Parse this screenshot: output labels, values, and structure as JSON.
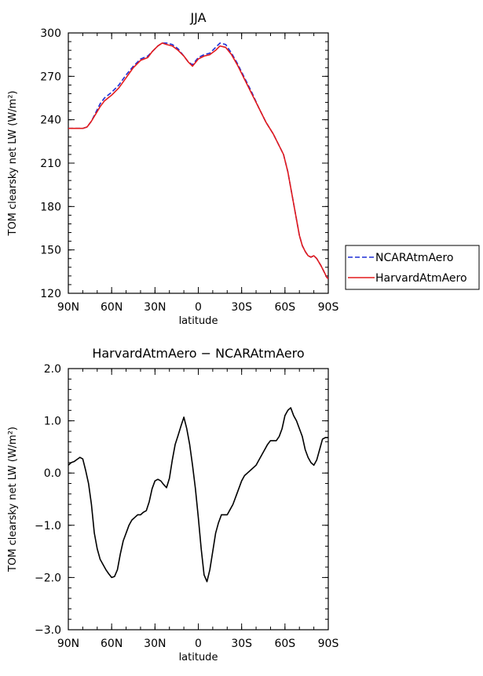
{
  "chart_data": [
    {
      "type": "line",
      "title": "JJA",
      "xlabel": "latitude",
      "ylabel": "TOM clearsky net LW (W/m²)",
      "xlim": [
        90,
        -90
      ],
      "ylim": [
        120,
        300
      ],
      "xticks": [
        90,
        60,
        30,
        0,
        -30,
        -60,
        -90
      ],
      "xtick_labels": [
        "90N",
        "60N",
        "30N",
        "0",
        "30S",
        "60S",
        "90S"
      ],
      "yticks": [
        120,
        150,
        180,
        210,
        240,
        270,
        300
      ],
      "ytick_labels": [
        "120",
        "150",
        "180",
        "210",
        "240",
        "270",
        "300"
      ],
      "legend_position": "outside-right",
      "series": [
        {
          "name": "NCARAtmAero",
          "color": "#1f2fd6",
          "dash": "dashed",
          "x": [
            90,
            85,
            80,
            77,
            74,
            71,
            68,
            65,
            60,
            55,
            50,
            45,
            40,
            35,
            32,
            28,
            25,
            22,
            18,
            14,
            10,
            7,
            4,
            0,
            -4,
            -8,
            -12,
            -15,
            -19,
            -23,
            -27,
            -32,
            -37,
            -42,
            -47,
            -52,
            -55,
            -59,
            -62,
            -64,
            -66,
            -68,
            -70,
            -72,
            -74,
            -76,
            -78,
            -80,
            -82,
            -85,
            -87,
            -89,
            -90
          ],
          "y": [
            234,
            234,
            234,
            235,
            239,
            245,
            251,
            255,
            259,
            264,
            271,
            277,
            282,
            284,
            287,
            291,
            293,
            293,
            292,
            289,
            284,
            280,
            278,
            283,
            285,
            286,
            290,
            293,
            292,
            286,
            279,
            269,
            259,
            248,
            238,
            230,
            224,
            216,
            204,
            193,
            182,
            171,
            160,
            153,
            149,
            146,
            145,
            146,
            144,
            139,
            135,
            131,
            130
          ]
        },
        {
          "name": "HarvardAtmAero",
          "color": "#e31a1c",
          "dash": "solid",
          "x": [
            90,
            85,
            80,
            77,
            74,
            71,
            68,
            65,
            60,
            55,
            50,
            45,
            40,
            35,
            32,
            28,
            25,
            22,
            18,
            14,
            10,
            7,
            4,
            0,
            -4,
            -8,
            -12,
            -15,
            -19,
            -23,
            -27,
            -32,
            -37,
            -42,
            -47,
            -52,
            -55,
            -59,
            -62,
            -64,
            -66,
            -68,
            -70,
            -72,
            -74,
            -76,
            -78,
            -80,
            -82,
            -85,
            -87,
            -89,
            -90
          ],
          "y": [
            234,
            234,
            234,
            235,
            239,
            244,
            249,
            253,
            257,
            262,
            269,
            276,
            281,
            283,
            287,
            291,
            293,
            292,
            291,
            288,
            284,
            280,
            277,
            282,
            284,
            285,
            288,
            291,
            290,
            285,
            278,
            268,
            258,
            248,
            238,
            230,
            224,
            216,
            204,
            193,
            182,
            171,
            160,
            153,
            149,
            146,
            145,
            146,
            144,
            139,
            135,
            131,
            130
          ]
        }
      ]
    },
    {
      "type": "line",
      "title": "HarvardAtmAero − NCARAtmAero",
      "xlabel": "latitude",
      "ylabel": "TOM clearsky net LW (W/m²)",
      "xlim": [
        90,
        -90
      ],
      "ylim": [
        -3.0,
        2.0
      ],
      "xticks": [
        90,
        60,
        30,
        0,
        -30,
        -60,
        -90
      ],
      "xtick_labels": [
        "90N",
        "60N",
        "30N",
        "0",
        "30S",
        "60S",
        "90S"
      ],
      "yticks": [
        -3,
        -2,
        -1,
        0,
        1,
        2
      ],
      "ytick_labels": [
        "−3.0",
        "−2.0",
        "−1.0",
        "0.0",
        "1.0",
        "2.0"
      ],
      "series": [
        {
          "color": "#000000",
          "dash": "solid",
          "x": [
            90,
            88,
            86,
            84,
            82,
            80,
            78,
            76,
            74,
            72,
            70,
            68,
            66,
            64,
            62,
            60,
            58,
            56,
            54,
            52,
            50,
            48,
            46,
            44,
            42,
            40,
            38,
            36,
            34,
            32,
            30,
            28,
            26,
            24,
            22,
            20,
            18,
            16,
            14,
            12,
            10,
            8,
            6,
            4,
            2,
            0,
            -2,
            -4,
            -6,
            -8,
            -10,
            -12,
            -14,
            -16,
            -18,
            -20,
            -22,
            -24,
            -26,
            -28,
            -30,
            -32,
            -34,
            -36,
            -38,
            -40,
            -42,
            -44,
            -46,
            -48,
            -50,
            -52,
            -54,
            -56,
            -58,
            -60,
            -62,
            -64,
            -66,
            -68,
            -70,
            -72,
            -74,
            -76,
            -78,
            -80,
            -82,
            -84,
            -86,
            -88,
            -90
          ],
          "y": [
            0.15,
            0.2,
            0.22,
            0.26,
            0.3,
            0.27,
            0.05,
            -0.2,
            -0.6,
            -1.15,
            -1.45,
            -1.65,
            -1.75,
            -1.85,
            -1.93,
            -2.0,
            -1.98,
            -1.85,
            -1.55,
            -1.3,
            -1.15,
            -1.0,
            -0.9,
            -0.85,
            -0.8,
            -0.8,
            -0.75,
            -0.72,
            -0.55,
            -0.3,
            -0.15,
            -0.12,
            -0.15,
            -0.22,
            -0.28,
            -0.1,
            0.25,
            0.55,
            0.72,
            0.9,
            1.07,
            0.85,
            0.55,
            0.15,
            -0.3,
            -0.85,
            -1.45,
            -1.95,
            -2.08,
            -1.85,
            -1.5,
            -1.15,
            -0.95,
            -0.8,
            -0.8,
            -0.8,
            -0.7,
            -0.6,
            -0.45,
            -0.3,
            -0.15,
            -0.05,
            0.0,
            0.05,
            0.1,
            0.15,
            0.25,
            0.35,
            0.45,
            0.55,
            0.62,
            0.62,
            0.62,
            0.7,
            0.85,
            1.1,
            1.2,
            1.25,
            1.1,
            1.0,
            0.85,
            0.7,
            0.45,
            0.3,
            0.2,
            0.15,
            0.25,
            0.45,
            0.65,
            0.68,
            0.68
          ]
        }
      ]
    }
  ]
}
